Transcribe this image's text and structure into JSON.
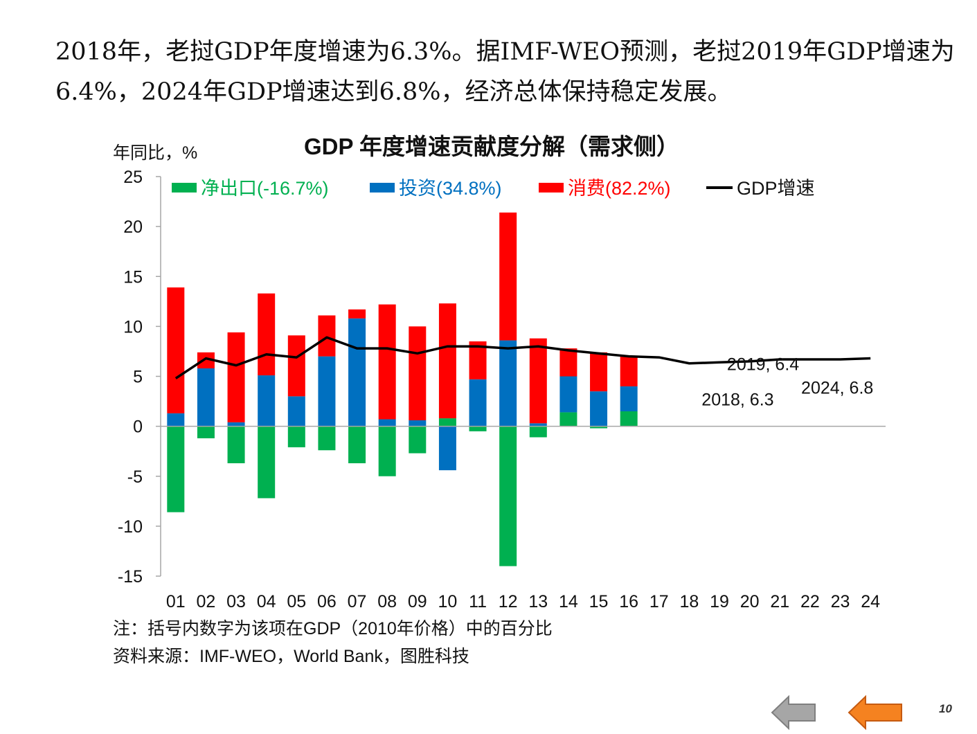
{
  "intro": {
    "text": "2018年，老挝GDP年度增速为6.3%。据IMF-WEO预测，老挝2019年GDP增速为6.4%，2024年GDP增速达到6.8%，经济总体保持稳定发展。"
  },
  "chart_data": {
    "type": "bar",
    "title": "GDP 年度增速贡献度分解（需求侧）",
    "ylabel": "年同比，%",
    "ylim": [
      -15,
      25
    ],
    "yticks": [
      25,
      20,
      15,
      10,
      5,
      0,
      -5,
      -10,
      -15
    ],
    "categories": [
      "01",
      "02",
      "03",
      "04",
      "05",
      "06",
      "07",
      "08",
      "09",
      "10",
      "11",
      "12",
      "13",
      "14",
      "15",
      "16",
      "17",
      "18",
      "19",
      "20",
      "21",
      "22",
      "23",
      "24"
    ],
    "stacked": true,
    "series": [
      {
        "name": "净出口(-16.7%)",
        "type": "bar",
        "color": "#00b050",
        "values": [
          -8.6,
          -1.2,
          -3.7,
          -7.2,
          -2.1,
          -2.4,
          -3.7,
          -5.0,
          -2.7,
          0.8,
          -0.5,
          -14.0,
          -1.1,
          1.4,
          -0.2,
          1.5,
          null,
          null,
          null,
          null,
          null,
          null,
          null,
          null
        ]
      },
      {
        "name": "投资(34.8%)",
        "type": "bar",
        "color": "#0070c0",
        "values": [
          1.3,
          5.8,
          0.4,
          5.1,
          3.0,
          7.0,
          10.8,
          0.7,
          0.6,
          -4.4,
          4.7,
          8.6,
          0.3,
          3.6,
          3.5,
          2.5,
          null,
          null,
          null,
          null,
          null,
          null,
          null,
          null
        ]
      },
      {
        "name": "消费(82.2%)",
        "type": "bar",
        "color": "#ff0000",
        "values": [
          12.6,
          1.6,
          9.0,
          8.2,
          6.1,
          4.1,
          0.9,
          11.5,
          9.4,
          11.5,
          3.8,
          12.8,
          8.5,
          2.8,
          3.9,
          3.0,
          null,
          null,
          null,
          null,
          null,
          null,
          null,
          null
        ]
      },
      {
        "name": "GDP增速",
        "type": "line",
        "color": "#000000",
        "values": [
          4.8,
          6.8,
          6.1,
          7.2,
          6.9,
          8.9,
          7.8,
          7.8,
          7.3,
          8.0,
          8.0,
          7.8,
          8.0,
          7.6,
          7.3,
          7.0,
          6.9,
          6.3,
          6.4,
          6.5,
          6.7,
          6.7,
          6.7,
          6.8
        ]
      }
    ],
    "annotations": [
      {
        "text": "2018, 6.3",
        "category": "18",
        "value": 6.3
      },
      {
        "text": "2019, 6.4",
        "category": "19",
        "value": 6.4
      },
      {
        "text": "2024, 6.8",
        "category": "24",
        "value": 6.8
      }
    ],
    "legend_position": "top",
    "grid": false
  },
  "notes": {
    "note": "注：括号内数字为该项在GDP（2010年价格）中的百分比",
    "source": "资料来源：IMF-WEO，World Bank，图胜科技"
  },
  "nav": {
    "back_icon": "gray-left-arrow-icon",
    "prev_icon": "orange-left-arrow-icon",
    "back_color": "#a6a6a6",
    "prev_color": "#f58220"
  },
  "page": {
    "number": "10"
  }
}
